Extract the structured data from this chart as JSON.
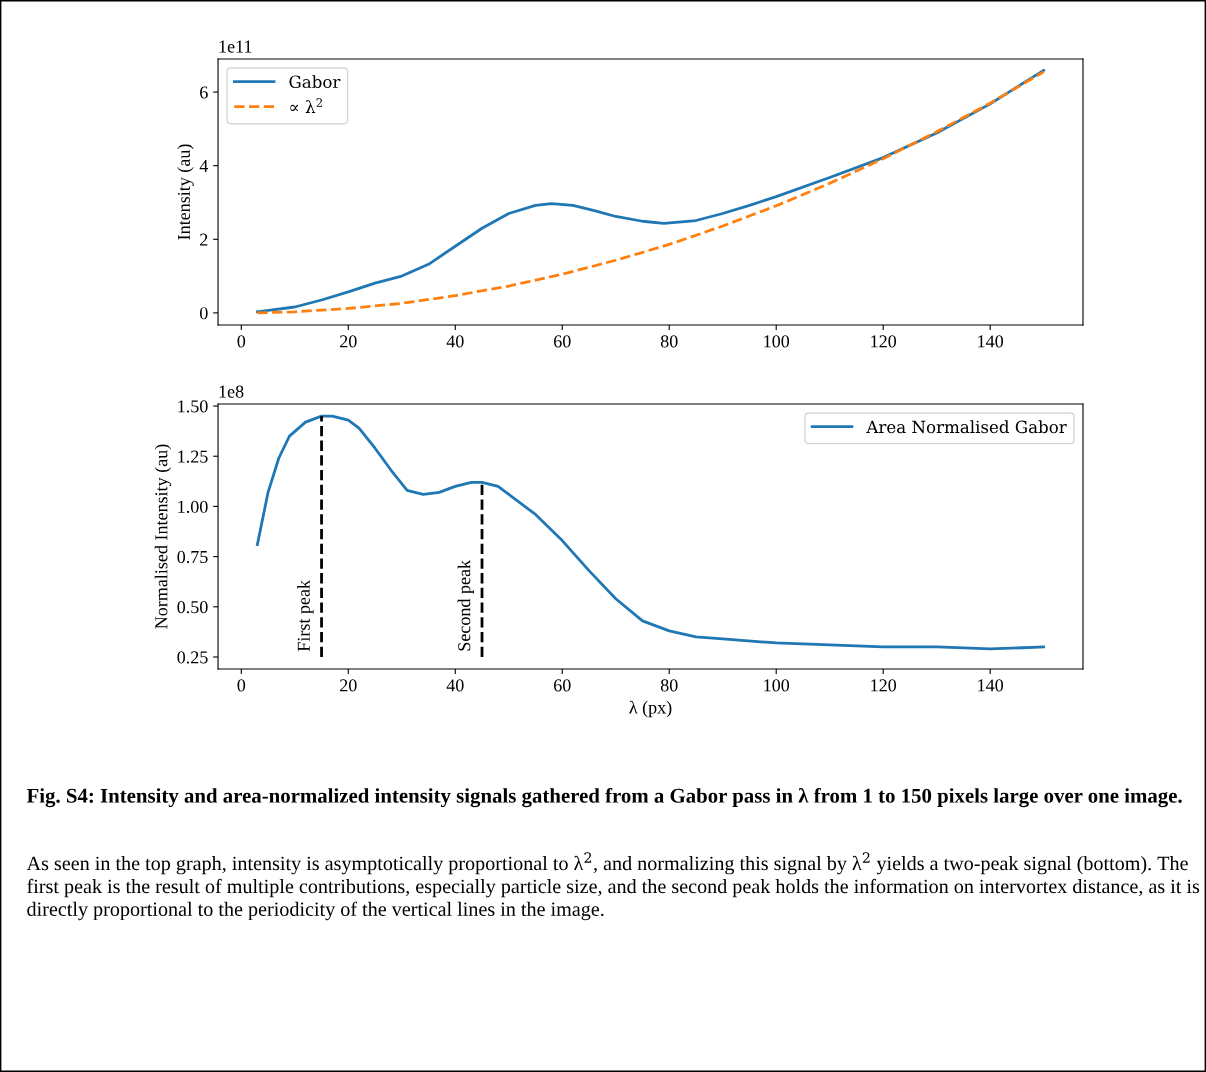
{
  "chart_data": [
    {
      "type": "line",
      "ylabel": "Intensity (au)",
      "xlim": [
        -4.35,
        157.35
      ],
      "xticks": [
        0,
        20,
        40,
        60,
        80,
        100,
        120,
        140
      ],
      "ylim": [
        -0.33,
        6.9
      ],
      "yticks": [
        0,
        2,
        4,
        6
      ],
      "legend": "top left",
      "grid": false,
      "annotations": [
        "1e11"
      ],
      "series": [
        {
          "name": "Gabor",
          "color": "#1f77b4",
          "line_style": "solid",
          "x": [
            3,
            10,
            15,
            20,
            25,
            30,
            35,
            40,
            45,
            50,
            55,
            58,
            62,
            66,
            70,
            75,
            79,
            85,
            90,
            95,
            100,
            110,
            120,
            130,
            140,
            150
          ],
          "values": [
            0.03,
            0.16,
            0.35,
            0.57,
            0.81,
            1.0,
            1.32,
            1.81,
            2.3,
            2.7,
            2.92,
            2.97,
            2.92,
            2.78,
            2.62,
            2.49,
            2.43,
            2.51,
            2.7,
            2.92,
            3.16,
            3.68,
            4.22,
            4.89,
            5.68,
            6.59
          ]
        },
        {
          "name": "∝ λ$^{2}$",
          "color": "#ff7f0e",
          "line_style": "dashed",
          "x": [
            3,
            10,
            20,
            30,
            40,
            50,
            60,
            70,
            80,
            90,
            100,
            110,
            120,
            130,
            140,
            150
          ],
          "values": [
            0.0,
            0.03,
            0.12,
            0.26,
            0.47,
            0.73,
            1.05,
            1.43,
            1.86,
            2.36,
            2.91,
            3.52,
            4.19,
            4.92,
            5.7,
            6.55
          ]
        }
      ]
    },
    {
      "type": "line",
      "xlabel": "λ (px)",
      "ylabel": "Normalised Intensity (au)",
      "xlim": [
        -4.35,
        157.35
      ],
      "xticks": [
        0,
        20,
        40,
        60,
        80,
        100,
        120,
        140
      ],
      "ylim": [
        0.19,
        1.51
      ],
      "yticks": [
        0.25,
        {
          "value": 0.5,
          "label": "0.50"
        },
        0.75,
        {
          "value": 1.0,
          "label": "1.00"
        },
        1.25,
        {
          "value": 1.5,
          "label": "1.50"
        }
      ],
      "legend": "top right",
      "grid": false,
      "ref_lines": [
        {
          "axis": "x",
          "value": 15,
          "label": "First peak",
          "color": "#000000",
          "line_style": "dashed"
        },
        {
          "axis": "x",
          "value": 45,
          "label": "Second peak",
          "color": "#000000",
          "line_style": "dashed"
        }
      ],
      "annotations": [
        "1e8",
        "Fig. S4: Intensity and area-normalized intensity signals gathered from a Gabor pass in λ from 1 to 150 pixels large over one image.",
        "As seen in the top graph, intensity is asymptotically proportional to λ$^{2}$, and normalizing this signal by λ$^{2}$ yields a two-peak signal (bottom). The first peak is the result of multiple contributions, especially particle size, and the second peak holds the information on intervortex distance, as it is directly proportional to the periodicity of the vertical lines in the image."
      ],
      "series": [
        {
          "name": "Area Normalised Gabor",
          "color": "#1f77b4",
          "line_style": "solid",
          "x": [
            3,
            5,
            7,
            9,
            12,
            15,
            17,
            20,
            22,
            25,
            28,
            31,
            34,
            37,
            40,
            43,
            45,
            48,
            51,
            55,
            60,
            65,
            70,
            75,
            80,
            85,
            90,
            100,
            110,
            120,
            130,
            140,
            150
          ],
          "values": [
            0.81,
            1.07,
            1.24,
            1.35,
            1.42,
            1.45,
            1.45,
            1.43,
            1.39,
            1.29,
            1.18,
            1.08,
            1.06,
            1.07,
            1.1,
            1.12,
            1.12,
            1.1,
            1.04,
            0.96,
            0.83,
            0.68,
            0.54,
            0.43,
            0.38,
            0.35,
            0.34,
            0.32,
            0.31,
            0.3,
            0.3,
            0.29,
            0.3
          ]
        }
      ]
    }
  ]
}
